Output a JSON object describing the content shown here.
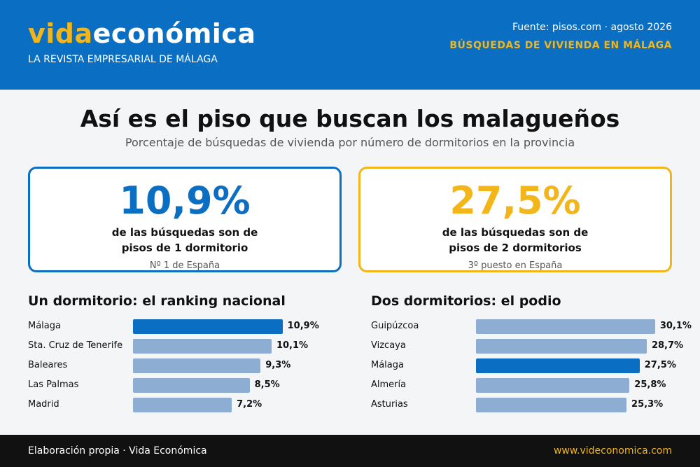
{
  "header": {
    "brand_part1": "vida",
    "brand_part2": "económica",
    "tagline": "LA REVISTA EMPRESARIAL DE MÁLAGA",
    "source": "Fuente: pisos.com · agosto 2026",
    "section": "BÚSQUEDAS DE VIVIENDA EN MÁLAGA"
  },
  "title": "Así es el piso que buscan los malagueños",
  "subtitle": "Porcentaje de búsquedas de vivienda por número de dormitorios en la provincia",
  "cards": [
    {
      "value": "10,9%",
      "desc_line1": "de las búsquedas son de",
      "desc_line2": "pisos de 1 dormitorio",
      "note": "Nº 1 de España"
    },
    {
      "value": "27,5%",
      "desc_line1": "de las búsquedas son de",
      "desc_line2": "pisos de 2 dormitorios",
      "note": "3º puesto en España"
    }
  ],
  "colors": {
    "accent_blue": "#0a6fc2",
    "accent_yellow": "#f2b51a",
    "bar_muted": "#8eadd3",
    "footer_bg": "#111111"
  },
  "chart_data": [
    {
      "type": "bar",
      "orientation": "horizontal",
      "title": "Un dormitorio: el ranking nacional",
      "categories": [
        "Málaga",
        "Sta. Cruz de Tenerife",
        "Baleares",
        "Las Palmas",
        "Madrid"
      ],
      "values": [
        10.9,
        10.1,
        9.3,
        8.5,
        7.2
      ],
      "value_labels": [
        "10,9%",
        "10,1%",
        "9,3%",
        "8,5%",
        "7,2%"
      ],
      "highlight": "Málaga",
      "unit": "%"
    },
    {
      "type": "bar",
      "orientation": "horizontal",
      "title": "Dos dormitorios: el podio",
      "categories": [
        "Guipúzcoa",
        "Vizcaya",
        "Málaga",
        "Almería",
        "Asturias"
      ],
      "values": [
        30.1,
        28.7,
        27.5,
        25.8,
        25.3
      ],
      "value_labels": [
        "30,1%",
        "28,7%",
        "27,5%",
        "25,8%",
        "25,3%"
      ],
      "highlight": "Málaga",
      "unit": "%"
    }
  ],
  "footer": {
    "credit": "Elaboración propia · Vida Económica",
    "site": "www.videconomica.com"
  }
}
